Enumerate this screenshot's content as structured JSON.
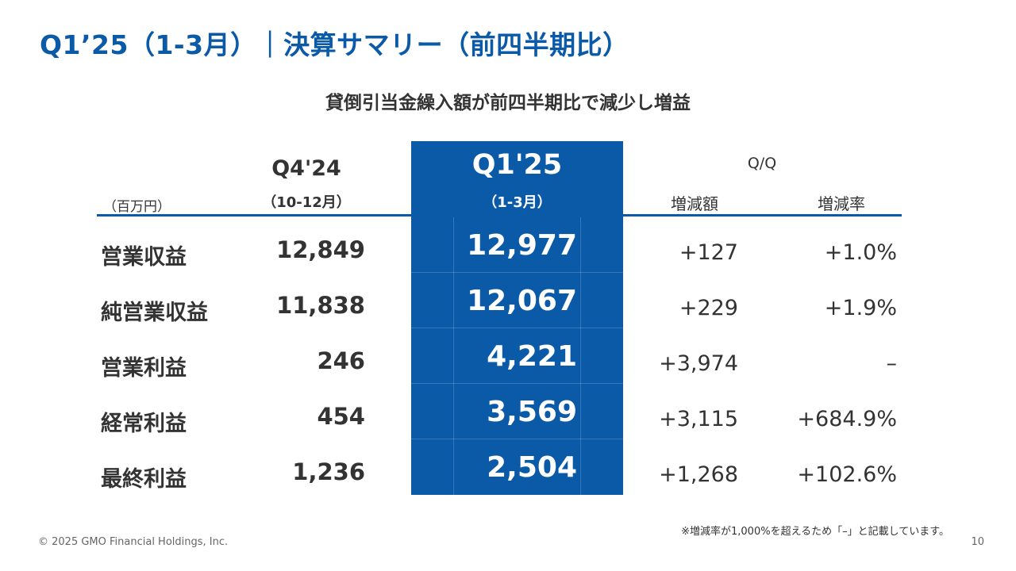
{
  "header": {
    "title": "Q1’25（1-3月）｜決算サマリー（前四半期比）",
    "subtitle": "貸倒引当金繰入額が前四半期比で減少し増益"
  },
  "table": {
    "unit": "（百万円）",
    "q4_label": "Q4'24",
    "q4_sub": "（10-12月）",
    "q1_label": "Q1'25",
    "q1_sub": "（1-3月）",
    "qq_label": "Q/Q",
    "diff_label": "増減額",
    "rate_label": "増減率",
    "rows": [
      {
        "label": "営業収益",
        "q4": "12,849",
        "q1": "12,977",
        "diff": "+127",
        "rate": "+1.0%"
      },
      {
        "label": "純営業収益",
        "q4": "11,838",
        "q1": "12,067",
        "diff": "+229",
        "rate": "+1.9%"
      },
      {
        "label": "営業利益",
        "q4": "246",
        "q1": "4,221",
        "diff": "+3,974",
        "rate": "–"
      },
      {
        "label": "経常利益",
        "q4": "454",
        "q1": "3,569",
        "diff": "+3,115",
        "rate": "+684.9%"
      },
      {
        "label": "最終利益",
        "q4": "1,236",
        "q1": "2,504",
        "diff": "+1,268",
        "rate": "+102.6%"
      }
    ]
  },
  "footer": {
    "note": "※増減率が1,000%を超えるため「–」と記載しています。",
    "copyright": "© 2025 GMO Financial Holdings, Inc.",
    "page": "10"
  },
  "colors": {
    "accent": "#0a5aa8",
    "text": "#333333"
  }
}
